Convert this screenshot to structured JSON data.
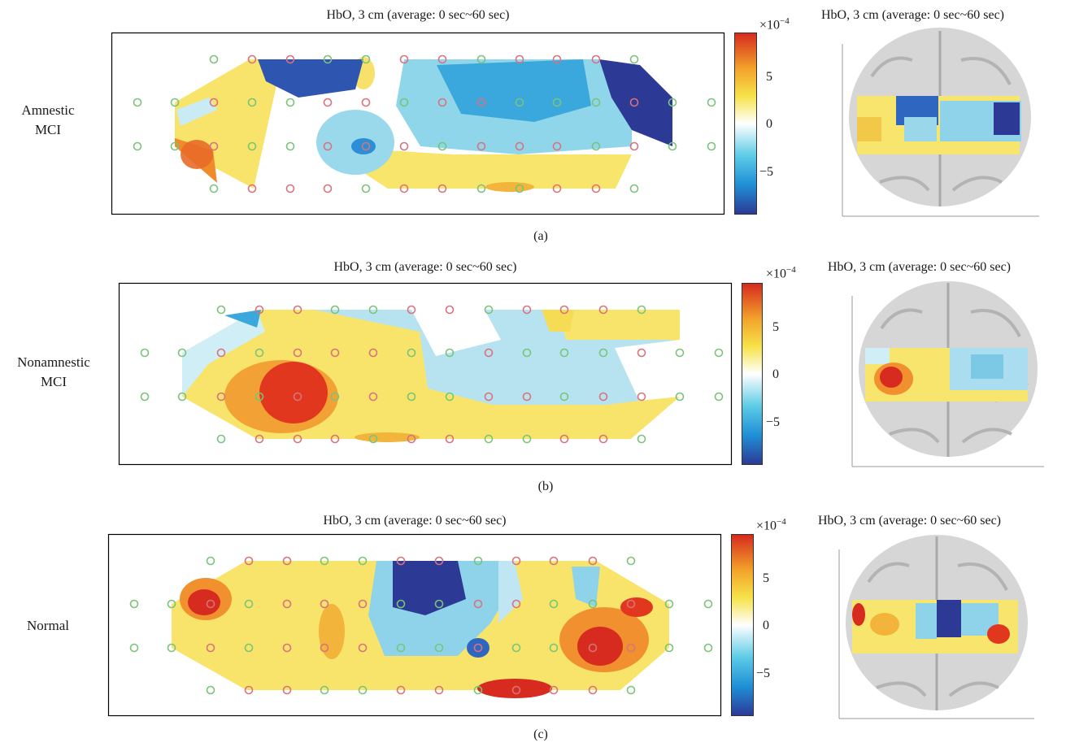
{
  "figure": {
    "rows": [
      {
        "panel": "(a)",
        "group_line1": "Amnestic",
        "group_line2": "MCI",
        "map_title": "HbO, 3 cm (average: 0 sec~60 sec)",
        "brain_title": "HbO, 3 cm (average: 0 sec~60 sec)"
      },
      {
        "panel": "(b)",
        "group_line1": "Nonamnestic",
        "group_line2": "MCI",
        "map_title": "HbO, 3 cm (average: 0 sec~60 sec)",
        "brain_title": "HbO, 3 cm (average: 0 sec~60 sec)"
      },
      {
        "panel": "(c)",
        "group_line1": "Normal",
        "group_line2": "",
        "map_title": "HbO, 3 cm (average: 0 sec~60 sec)",
        "brain_title": "HbO, 3 cm (average: 0 sec~60 sec)"
      }
    ],
    "colorbar": {
      "scale_base": "×10",
      "scale_exp": "−4",
      "ticks": [
        "5",
        "0",
        "−5"
      ],
      "range": [
        -9,
        9
      ],
      "colormap": [
        "#2c3a96",
        "#1f8fd6",
        "#5ccbe6",
        "#ffffff",
        "#f6e34a",
        "#f3a52b",
        "#d62b1e"
      ]
    },
    "colors": {
      "source_optode": "#d9727c",
      "detector_optode": "#79c479"
    }
  }
}
